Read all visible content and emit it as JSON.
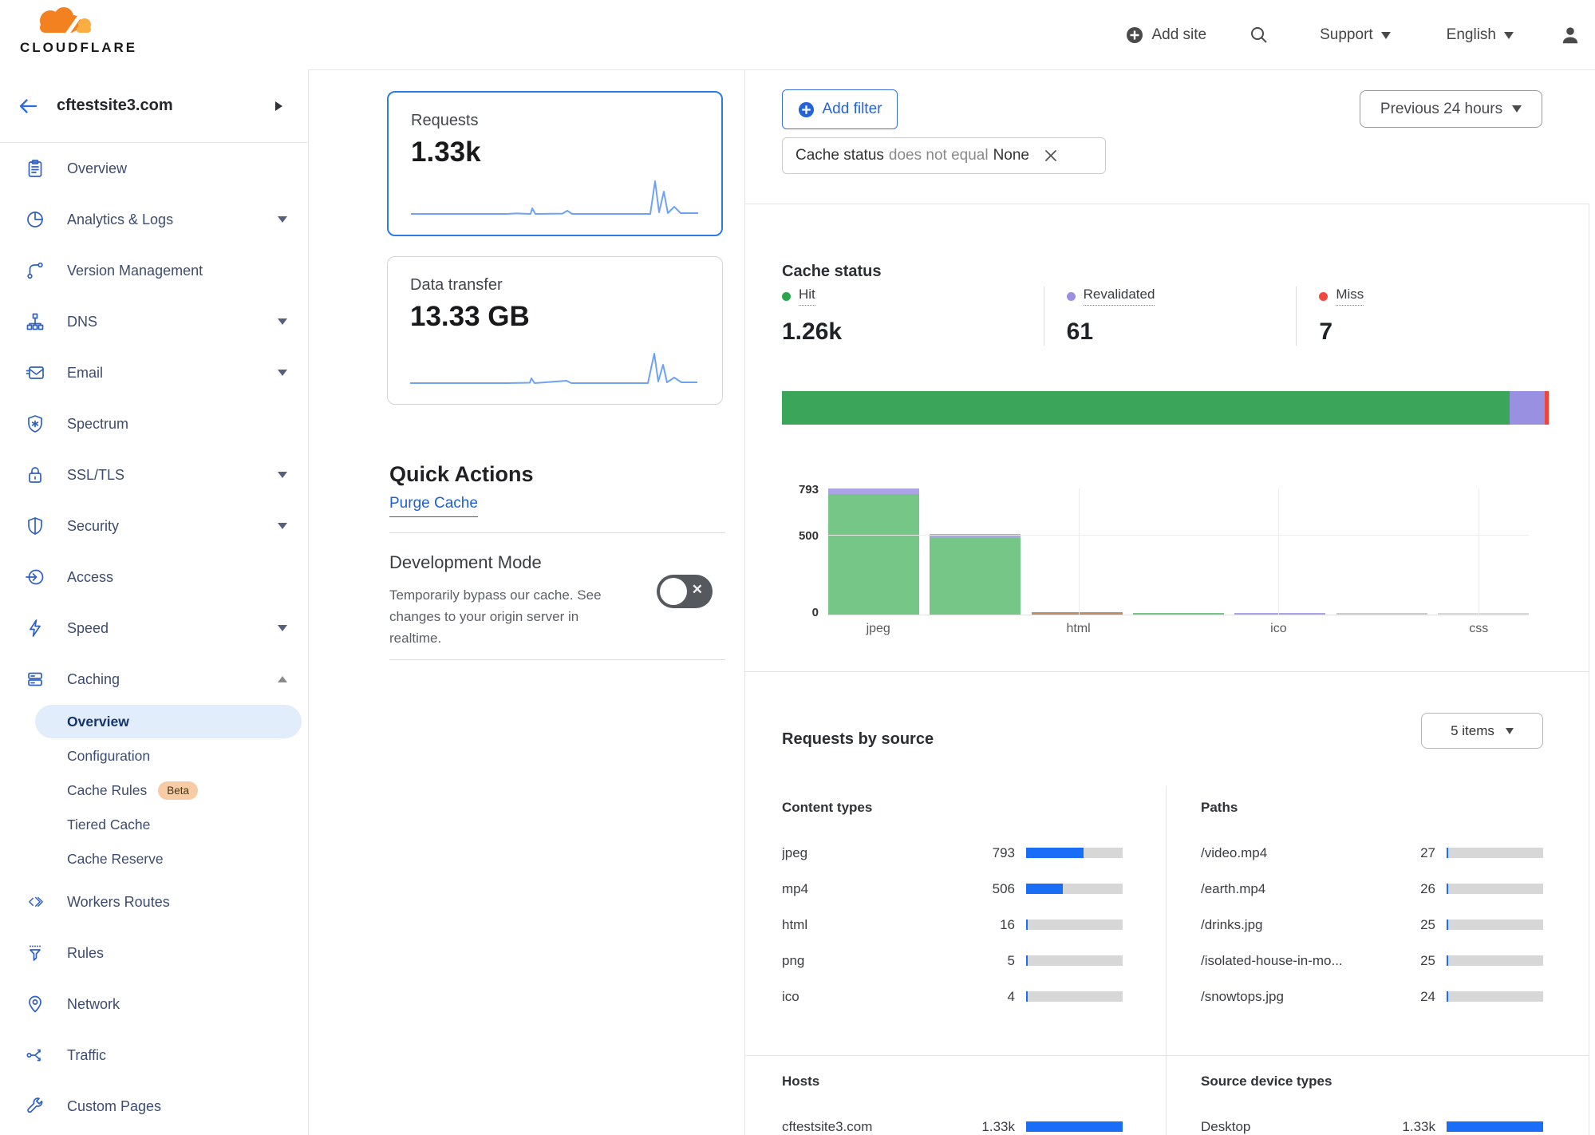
{
  "header": {
    "brand": "CLOUDFLARE",
    "add_site": "Add site",
    "support": "Support",
    "language": "English"
  },
  "sidebar": {
    "site": "cftestsite3.com",
    "items": [
      {
        "label": "Overview",
        "icon": "clipboard-icon"
      },
      {
        "label": "Analytics & Logs",
        "icon": "pie-chart-icon",
        "expandable": true
      },
      {
        "label": "Version Management",
        "icon": "git-branch-icon"
      },
      {
        "label": "DNS",
        "icon": "dns-tree-icon",
        "expandable": true
      },
      {
        "label": "Email",
        "icon": "envelope-icon",
        "expandable": true
      },
      {
        "label": "Spectrum",
        "icon": "spectrum-shield-icon"
      },
      {
        "label": "SSL/TLS",
        "icon": "padlock-icon",
        "expandable": true
      },
      {
        "label": "Security",
        "icon": "shield-icon",
        "expandable": true
      },
      {
        "label": "Access",
        "icon": "access-icon"
      },
      {
        "label": "Speed",
        "icon": "lightning-icon",
        "expandable": true
      },
      {
        "label": "Caching",
        "icon": "cache-server-icon",
        "expanded": true
      }
    ],
    "caching_sub": [
      {
        "label": "Overview",
        "active": true
      },
      {
        "label": "Configuration"
      },
      {
        "label": "Cache Rules",
        "badge": "Beta"
      },
      {
        "label": "Tiered Cache"
      },
      {
        "label": "Cache Reserve"
      }
    ],
    "items_after": [
      {
        "label": "Workers Routes",
        "icon": "code-icon"
      },
      {
        "label": "Rules",
        "icon": "funnel-icon"
      },
      {
        "label": "Network",
        "icon": "location-pin-icon"
      },
      {
        "label": "Traffic",
        "icon": "share-icon"
      },
      {
        "label": "Custom Pages",
        "icon": "wrench-icon"
      }
    ]
  },
  "summary": {
    "requests": {
      "label": "Requests",
      "value": "1.33k"
    },
    "data_transfer": {
      "label": "Data transfer",
      "value": "13.33 GB"
    }
  },
  "quick_actions": {
    "title": "Quick Actions",
    "purge_label": "Purge Cache",
    "dev_mode_title": "Development Mode",
    "dev_mode_description": "Temporarily bypass our cache. See changes to your origin server in realtime."
  },
  "filters": {
    "add_filter_label": "Add filter",
    "chip_field": "Cache status",
    "chip_operator": "does not equal",
    "chip_value": "None",
    "time_range": "Previous 24 hours"
  },
  "cache_status": {
    "title": "Cache status",
    "stats": [
      {
        "label": "Hit",
        "value": "1.26k",
        "color": "#2da44e"
      },
      {
        "label": "Revalidated",
        "value": "61",
        "color": "#9a8fe0"
      },
      {
        "label": "Miss",
        "value": "7",
        "color": "#f0483e"
      }
    ]
  },
  "sources": {
    "title": "Requests by source",
    "items_dropdown": "5 items",
    "total": 1332,
    "columns": [
      {
        "title": "Content types",
        "rows": [
          {
            "label": "jpeg",
            "value": "793",
            "num": 793
          },
          {
            "label": "mp4",
            "value": "506",
            "num": 506
          },
          {
            "label": "html",
            "value": "16",
            "num": 16
          },
          {
            "label": "png",
            "value": "5",
            "num": 5
          },
          {
            "label": "ico",
            "value": "4",
            "num": 4
          }
        ]
      },
      {
        "title": "Paths",
        "rows": [
          {
            "label": "/video.mp4",
            "value": "27",
            "num": 27
          },
          {
            "label": "/earth.mp4",
            "value": "26",
            "num": 26
          },
          {
            "label": "/drinks.jpg",
            "value": "25",
            "num": 25
          },
          {
            "label": "/isolated-house-in-mo...",
            "value": "25",
            "num": 25
          },
          {
            "label": "/snowtops.jpg",
            "value": "24",
            "num": 24
          }
        ]
      },
      {
        "title": "Hosts",
        "rows": [
          {
            "label": "cftestsite3.com",
            "value": "1.33k",
            "num": 1332
          }
        ]
      },
      {
        "title": "Source device types",
        "rows": [
          {
            "label": "Desktop",
            "value": "1.33k",
            "num": 1332
          }
        ]
      }
    ]
  },
  "chart_data": [
    {
      "id": "cache-status-distribution",
      "type": "stacked-bar",
      "title": "Cache status",
      "categories": [
        "Hit",
        "Revalidated",
        "Miss"
      ],
      "values": [
        1264,
        61,
        7
      ],
      "display_values": [
        "1.26k",
        "61",
        "7"
      ],
      "colors": [
        "#3ba55a",
        "#9a90e2",
        "#f04438"
      ]
    },
    {
      "id": "cache-status-by-content-type",
      "type": "bar",
      "xlabel": "",
      "ylabel": "",
      "ylim": [
        0,
        793
      ],
      "yticks": [
        0,
        500,
        793
      ],
      "ytick_labels": [
        "0",
        "500",
        "793"
      ],
      "legend_position": "none",
      "grid": true,
      "palette": {
        "hit": "#76c688",
        "revalidated": "#aaa3e8",
        "mixed": "#bd8f66",
        "gray": "#cccccc",
        "light": "#d9d9d9"
      },
      "bars": [
        {
          "label": "jpeg",
          "total": 793,
          "segments": [
            {
              "color": "hit",
              "value": 758
            },
            {
              "color": "revalidated",
              "value": 35
            }
          ]
        },
        {
          "label": "",
          "total": 506,
          "segments": [
            {
              "color": "hit",
              "value": 480
            },
            {
              "color": "revalidated",
              "value": 26
            }
          ]
        },
        {
          "label": "html",
          "total": 16,
          "segments": [
            {
              "color": "mixed",
              "value": 16
            }
          ]
        },
        {
          "label": "",
          "total": 5,
          "segments": [
            {
              "color": "hit",
              "value": 5
            }
          ]
        },
        {
          "label": "ico",
          "total": 4,
          "segments": [
            {
              "color": "revalidated",
              "value": 4
            }
          ]
        },
        {
          "label": "",
          "total": 3,
          "segments": [
            {
              "color": "gray",
              "value": 3
            }
          ]
        },
        {
          "label": "css",
          "total": 2,
          "segments": [
            {
              "color": "light",
              "value": 2
            }
          ]
        }
      ]
    }
  ]
}
